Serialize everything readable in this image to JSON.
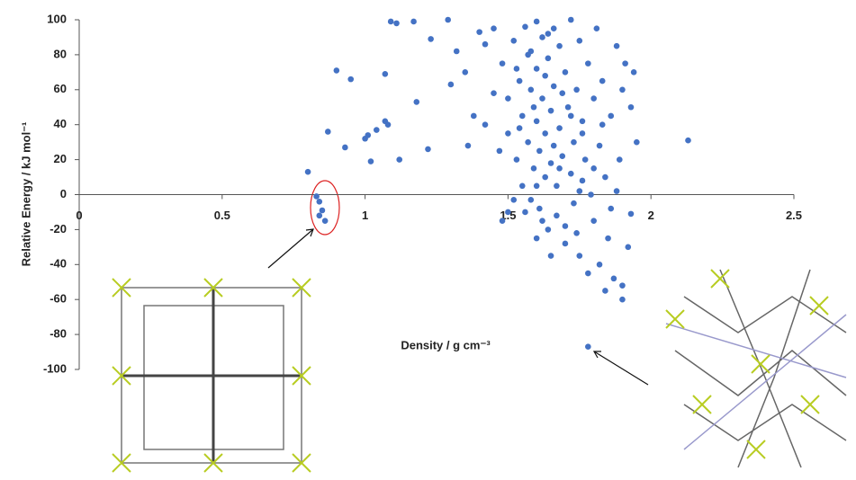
{
  "chart_data": {
    "type": "scatter",
    "y_label": "Relative Energy / kJ mol⁻¹",
    "x_label": "Density / g cm⁻³",
    "color": "#4472c4",
    "xlim": [
      0,
      2.5
    ],
    "xticks": [
      0,
      0.5,
      1,
      1.5,
      2,
      2.5
    ],
    "ylim": [
      -100,
      100
    ],
    "yticks": [
      -100,
      -80,
      -60,
      -40,
      -20,
      0,
      20,
      40,
      60,
      80,
      100
    ],
    "x": [
      0.8,
      0.83,
      0.84,
      0.85,
      0.84,
      0.86,
      0.87,
      0.9,
      0.93,
      0.95,
      1.0,
      1.01,
      1.02,
      1.04,
      1.07,
      1.08,
      1.07,
      1.09,
      1.11,
      1.12,
      1.17,
      1.18,
      1.22,
      1.23,
      1.29,
      1.3,
      1.32,
      1.35,
      1.36,
      1.38,
      1.4,
      1.42,
      1.45,
      1.48,
      1.5,
      1.78,
      2.13,
      1.95,
      1.93,
      1.9,
      1.45,
      1.48,
      1.5,
      1.5,
      1.52,
      1.53,
      1.54,
      1.55,
      1.55,
      1.56,
      1.57,
      1.57,
      1.58,
      1.58,
      1.59,
      1.6,
      1.6,
      1.6,
      1.61,
      1.61,
      1.62,
      1.62,
      1.63,
      1.63,
      1.64,
      1.64,
      1.65,
      1.65,
      1.66,
      1.66,
      1.67,
      1.67,
      1.68,
      1.68,
      1.69,
      1.7,
      1.7,
      1.71,
      1.72,
      1.72,
      1.73,
      1.73,
      1.74,
      1.75,
      1.75,
      1.76,
      1.76,
      1.77,
      1.78,
      1.78,
      1.79,
      1.8,
      1.8,
      1.81,
      1.82,
      1.82,
      1.83,
      1.84,
      1.85,
      1.86,
      1.87,
      1.88,
      1.88,
      1.89,
      1.9,
      1.9,
      1.91,
      1.92,
      1.93,
      1.94,
      1.52,
      1.56,
      1.6,
      1.62,
      1.65,
      1.7,
      1.74,
      1.84,
      1.58,
      1.64,
      1.68,
      1.54,
      1.6,
      1.66,
      1.72,
      1.76,
      1.8,
      1.86,
      1.42,
      1.47,
      1.53,
      1.59,
      1.63,
      1.69,
      1.75,
      1.83
    ],
    "y": [
      13,
      -1,
      -4,
      -9,
      -12,
      -15,
      36,
      71,
      27,
      66,
      32,
      34,
      19,
      37,
      42,
      40,
      69,
      99,
      98,
      20,
      99,
      53,
      26,
      89,
      100,
      63,
      82,
      70,
      28,
      45,
      93,
      86,
      58,
      -15,
      -10,
      -87,
      31,
      30,
      -11,
      -60,
      95,
      75,
      55,
      35,
      88,
      20,
      65,
      45,
      5,
      96,
      80,
      30,
      -3,
      60,
      15,
      99,
      72,
      42,
      25,
      -8,
      90,
      55,
      10,
      35,
      -20,
      78,
      48,
      18,
      95,
      62,
      5,
      -12,
      38,
      85,
      22,
      70,
      -28,
      50,
      100,
      12,
      -5,
      30,
      60,
      88,
      -35,
      42,
      8,
      20,
      -45,
      75,
      0,
      55,
      -15,
      95,
      28,
      -40,
      65,
      10,
      -25,
      45,
      -48,
      85,
      2,
      20,
      -52,
      60,
      75,
      -30,
      50,
      70,
      -3,
      -10,
      -25,
      -15,
      -35,
      -18,
      -22,
      -55,
      82,
      92,
      15,
      38,
      5,
      28,
      45,
      35,
      15,
      -8,
      40,
      25,
      72,
      50,
      68,
      58,
      2,
      40
    ]
  }
}
